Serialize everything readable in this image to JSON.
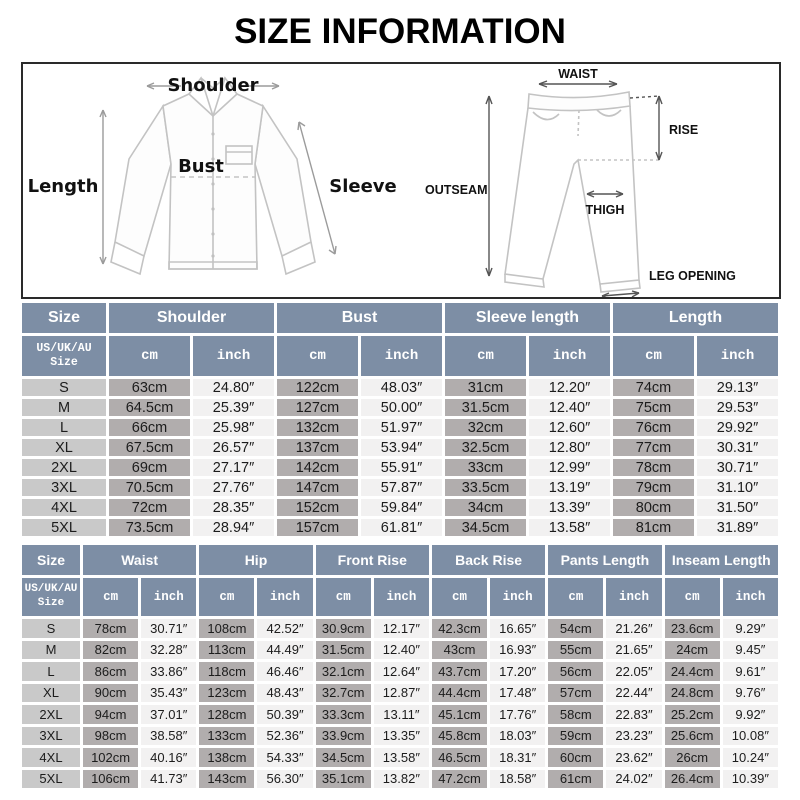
{
  "title": "SIZE INFORMATION",
  "units": {
    "cm": "cm",
    "inch": "inch"
  },
  "colors": {
    "header_bg": "#7D8EA5",
    "size_cell_bg": "#C9C9C9",
    "cm_cell_bg": "#B1ADAD",
    "inch_cell_bg": "#F2F1F1",
    "sketch_line": "#c3c3c3",
    "title_text": "#000000"
  },
  "shirt_diagram": {
    "shoulder": "Shoulder",
    "length": "Length",
    "bust": "Bust",
    "sleeve": "Sleeve"
  },
  "pants_diagram": {
    "waist": "WAIST",
    "rise": "RISE",
    "outseam": "OUTSEAM",
    "thigh": "THIGH",
    "leg_opening": "LEG OPENING"
  },
  "shirt_table": {
    "groups": [
      "Size",
      "Shoulder",
      "Bust",
      "Sleeve length",
      "Length"
    ],
    "size_header": "US/UK/AU Size",
    "rows": [
      {
        "size": "S",
        "cells": [
          "63cm",
          "24.80″",
          "122cm",
          "48.03″",
          "31cm",
          "12.20″",
          "74cm",
          "29.13″"
        ]
      },
      {
        "size": "M",
        "cells": [
          "64.5cm",
          "25.39″",
          "127cm",
          "50.00″",
          "31.5cm",
          "12.40″",
          "75cm",
          "29.53″"
        ]
      },
      {
        "size": "L",
        "cells": [
          "66cm",
          "25.98″",
          "132cm",
          "51.97″",
          "32cm",
          "12.60″",
          "76cm",
          "29.92″"
        ]
      },
      {
        "size": "XL",
        "cells": [
          "67.5cm",
          "26.57″",
          "137cm",
          "53.94″",
          "32.5cm",
          "12.80″",
          "77cm",
          "30.31″"
        ]
      },
      {
        "size": "2XL",
        "cells": [
          "69cm",
          "27.17″",
          "142cm",
          "55.91″",
          "33cm",
          "12.99″",
          "78cm",
          "30.71″"
        ]
      },
      {
        "size": "3XL",
        "cells": [
          "70.5cm",
          "27.76″",
          "147cm",
          "57.87″",
          "33.5cm",
          "13.19″",
          "79cm",
          "31.10″"
        ]
      },
      {
        "size": "4XL",
        "cells": [
          "72cm",
          "28.35″",
          "152cm",
          "59.84″",
          "34cm",
          "13.39″",
          "80cm",
          "31.50″"
        ]
      },
      {
        "size": "5XL",
        "cells": [
          "73.5cm",
          "28.94″",
          "157cm",
          "61.81″",
          "34.5cm",
          "13.58″",
          "81cm",
          "31.89″"
        ]
      }
    ]
  },
  "pants_table": {
    "groups": [
      "Size",
      "Waist",
      "Hip",
      "Front Rise",
      "Back Rise",
      "Pants Length",
      "Inseam Length"
    ],
    "size_header": "US/UK/AU Size",
    "rows": [
      {
        "size": "S",
        "cells": [
          "78cm",
          "30.71″",
          "108cm",
          "42.52″",
          "30.9cm",
          "12.17″",
          "42.3cm",
          "16.65″",
          "54cm",
          "21.26″",
          "23.6cm",
          "9.29″"
        ]
      },
      {
        "size": "M",
        "cells": [
          "82cm",
          "32.28″",
          "113cm",
          "44.49″",
          "31.5cm",
          "12.40″",
          "43cm",
          "16.93″",
          "55cm",
          "21.65″",
          "24cm",
          "9.45″"
        ]
      },
      {
        "size": "L",
        "cells": [
          "86cm",
          "33.86″",
          "118cm",
          "46.46″",
          "32.1cm",
          "12.64″",
          "43.7cm",
          "17.20″",
          "56cm",
          "22.05″",
          "24.4cm",
          "9.61″"
        ]
      },
      {
        "size": "XL",
        "cells": [
          "90cm",
          "35.43″",
          "123cm",
          "48.43″",
          "32.7cm",
          "12.87″",
          "44.4cm",
          "17.48″",
          "57cm",
          "22.44″",
          "24.8cm",
          "9.76″"
        ]
      },
      {
        "size": "2XL",
        "cells": [
          "94cm",
          "37.01″",
          "128cm",
          "50.39″",
          "33.3cm",
          "13.11″",
          "45.1cm",
          "17.76″",
          "58cm",
          "22.83″",
          "25.2cm",
          "9.92″"
        ]
      },
      {
        "size": "3XL",
        "cells": [
          "98cm",
          "38.58″",
          "133cm",
          "52.36″",
          "33.9cm",
          "13.35″",
          "45.8cm",
          "18.03″",
          "59cm",
          "23.23″",
          "25.6cm",
          "10.08″"
        ]
      },
      {
        "size": "4XL",
        "cells": [
          "102cm",
          "40.16″",
          "138cm",
          "54.33″",
          "34.5cm",
          "13.58″",
          "46.5cm",
          "18.31″",
          "60cm",
          "23.62″",
          "26cm",
          "10.24″"
        ]
      },
      {
        "size": "5XL",
        "cells": [
          "106cm",
          "41.73″",
          "143cm",
          "56.30″",
          "35.1cm",
          "13.82″",
          "47.2cm",
          "18.58″",
          "61cm",
          "24.02″",
          "26.4cm",
          "10.39″"
        ]
      }
    ]
  }
}
